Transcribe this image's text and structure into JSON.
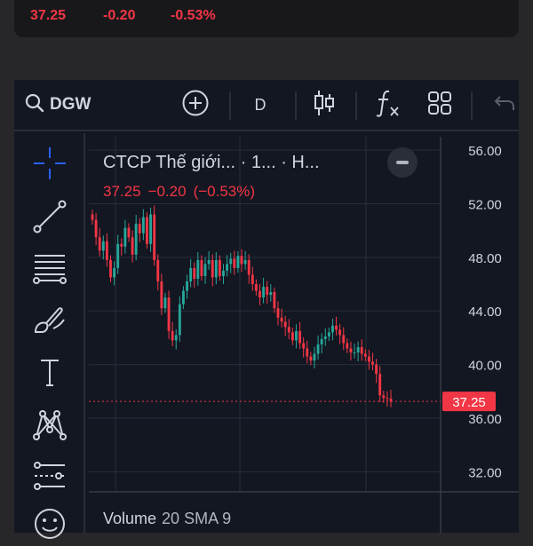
{
  "quote": {
    "price": "37.25",
    "change": "-0.20",
    "change_pct": "-0.53%"
  },
  "toolbar": {
    "symbol": "DGW",
    "interval": "D",
    "icons": [
      "search-icon",
      "plus-circle-icon",
      "candlestick-icon",
      "indicators-icon",
      "layout-grid-icon",
      "undo-icon"
    ]
  },
  "drawing_tools": [
    "crosshair-icon",
    "trend-line-icon",
    "fib-retracement-icon",
    "brush-icon",
    "text-icon",
    "pattern-icon",
    "prediction-icon",
    "emoji-icon"
  ],
  "legend": {
    "title": "CTCP Thế giới... · 1... · H...",
    "price": "37.25",
    "change": "−0.20",
    "change_pct": "(−0.53%)"
  },
  "price_axis": {
    "labels": [
      "56.00",
      "52.00",
      "48.00",
      "44.00",
      "40.00",
      "36.00",
      "32.00"
    ],
    "current_price_label": "37.25"
  },
  "volume_pane": {
    "name": "Volume",
    "params": "20 SMA 9"
  },
  "colors": {
    "up": "#26a69a",
    "down": "#f23645",
    "background": "#131722",
    "grid": "#2a2e39",
    "text": "#d1d4dc"
  },
  "chart_data": {
    "type": "line",
    "title": "",
    "xlabel": "",
    "ylabel": "",
    "ylim": [
      30.5,
      57
    ],
    "grid": true,
    "last_price": 37.25,
    "series": [
      {
        "values": [
          50.8,
          49.5,
          48.5,
          49.2,
          47.8,
          46.5,
          47.2,
          49.0,
          48.8,
          50.2,
          49.5,
          48.2,
          50.5,
          49.8,
          51.0,
          49.0,
          51.2,
          47.8,
          46.2,
          44.2,
          45.0,
          42.5,
          41.8,
          42.2,
          44.5,
          45.5,
          46.2,
          47.2,
          46.4,
          47.8,
          46.6,
          47.5,
          47.8,
          46.5,
          47.8,
          46.6,
          47.0,
          47.5,
          47.9,
          47.2,
          48.1,
          47.5,
          47.8,
          46.7,
          46.0,
          45.5,
          45.0,
          45.8,
          45.2,
          45.4,
          44.2,
          43.5,
          43.2,
          42.8,
          42.4,
          41.8,
          42.5,
          41.6,
          41.2,
          40.6,
          40.3,
          40.8,
          41.5,
          41.9,
          42.1,
          42.4,
          42.9,
          42.6,
          42.2,
          41.6,
          41.2,
          40.9,
          40.9,
          41.3,
          40.8,
          40.6,
          40.2,
          40.0,
          39.3,
          37.7,
          37.5,
          37.45,
          37.25
        ]
      }
    ]
  }
}
